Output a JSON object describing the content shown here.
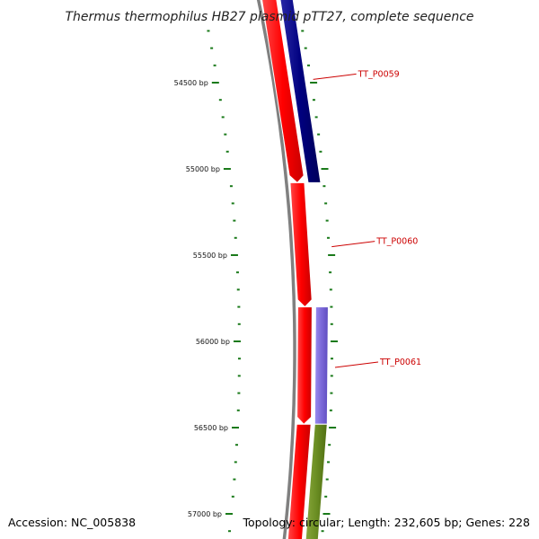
{
  "title": "Thermus thermophilus HB27 plasmid pTT27, complete sequence",
  "footer": {
    "accession": "Accession: NC_005838",
    "topology": "Topology: circular; Length: 232,605 bp; Genes: 228"
  },
  "colors": {
    "backbone": "#808080",
    "tick": "#1a7a1a",
    "forward_gene": "#ff0000",
    "reverse_gene_1": "#00007f",
    "reverse_gene_2": "#7b68d8",
    "reverse_gene_3": "#6b8e23",
    "label": "#cc0000"
  },
  "ruler": {
    "major_labels": [
      "54500 bp",
      "55000 bp",
      "55500 bp",
      "56000 bp",
      "56500 bp",
      "57000 bp"
    ],
    "major_values": [
      54500,
      55000,
      55500,
      56000,
      56500,
      57000
    ]
  },
  "features": [
    {
      "strand": "forward",
      "start": 54000,
      "end": 55080,
      "color_key": "forward_gene"
    },
    {
      "strand": "forward",
      "start": 55080,
      "end": 55800,
      "color_key": "forward_gene"
    },
    {
      "strand": "forward",
      "start": 55800,
      "end": 56480,
      "color_key": "forward_gene"
    },
    {
      "strand": "forward",
      "start": 56480,
      "end": 57200,
      "color_key": "forward_gene"
    },
    {
      "strand": "reverse",
      "start": 54000,
      "end": 55080,
      "color_key": "reverse_gene_1",
      "label": "TT_P0059"
    },
    {
      "strand": "reverse",
      "start": 55800,
      "end": 56480,
      "color_key": "reverse_gene_2",
      "label": "TT_P0061"
    },
    {
      "strand": "reverse",
      "start": 56480,
      "end": 57200,
      "color_key": "reverse_gene_3"
    }
  ],
  "labels": [
    {
      "text": "TT_P0059",
      "position_bp": 54450
    },
    {
      "text": "TT_P0060",
      "position_bp": 55420
    },
    {
      "text": "TT_P0061",
      "position_bp": 56120
    }
  ]
}
